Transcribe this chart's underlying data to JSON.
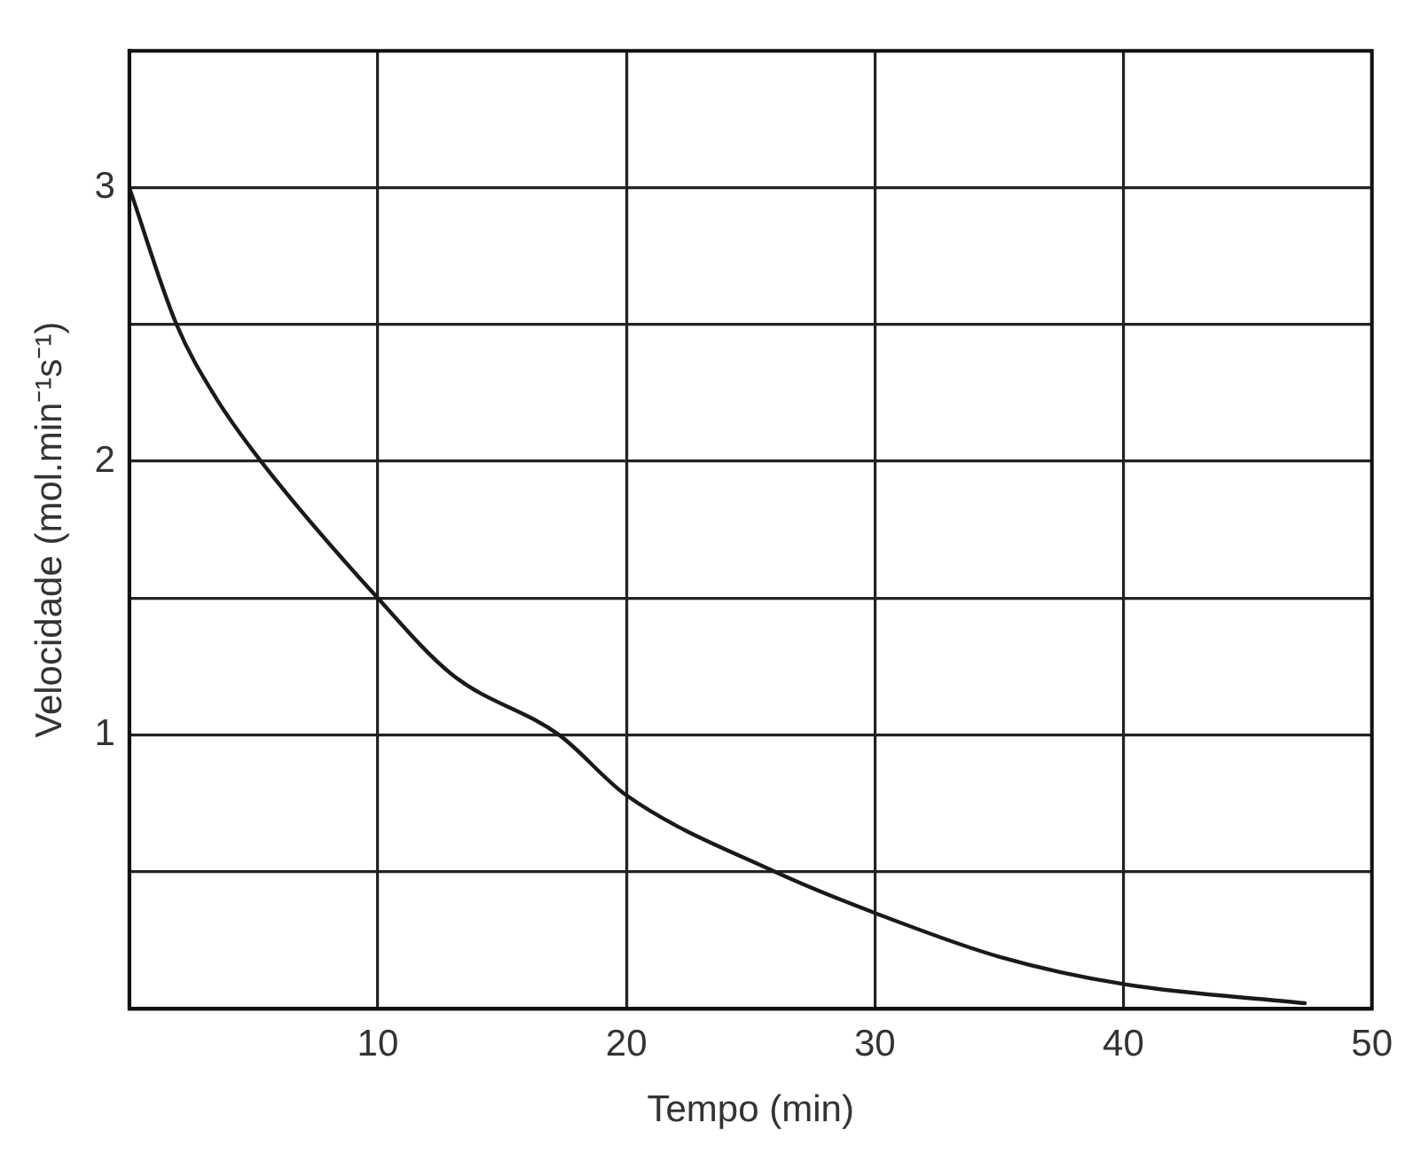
{
  "chart_data": {
    "type": "line",
    "xlabel": "Tempo (min)",
    "ylabel": "Velocidade (mol.min⁻¹s⁻¹)",
    "x": [
      0,
      1.9,
      3.5,
      5.3,
      10,
      13,
      17.3,
      20,
      26,
      30,
      35,
      40,
      47.3
    ],
    "series": [
      {
        "color": "#1a1a1a",
        "values": [
          3.0,
          2.5,
          2.23,
          2.0,
          1.5,
          1.22,
          1.0,
          0.78,
          0.5,
          0.35,
          0.19,
          0.09,
          0.02
        ]
      }
    ],
    "xlim": [
      0,
      50
    ],
    "xticks": [
      {
        "value": 0,
        "label": null
      },
      10,
      20,
      30,
      40,
      50
    ],
    "ylim": [
      0,
      3.5
    ],
    "yticks": [
      {
        "value": 0,
        "label": null
      },
      {
        "value": 0.5,
        "label": null
      },
      1,
      {
        "value": 1.5,
        "label": null
      },
      2,
      {
        "value": 2.5,
        "label": null
      },
      3,
      {
        "value": 3.5,
        "label": null
      }
    ],
    "grid": true,
    "legend": false,
    "marker": "none",
    "line_style": "solid"
  }
}
